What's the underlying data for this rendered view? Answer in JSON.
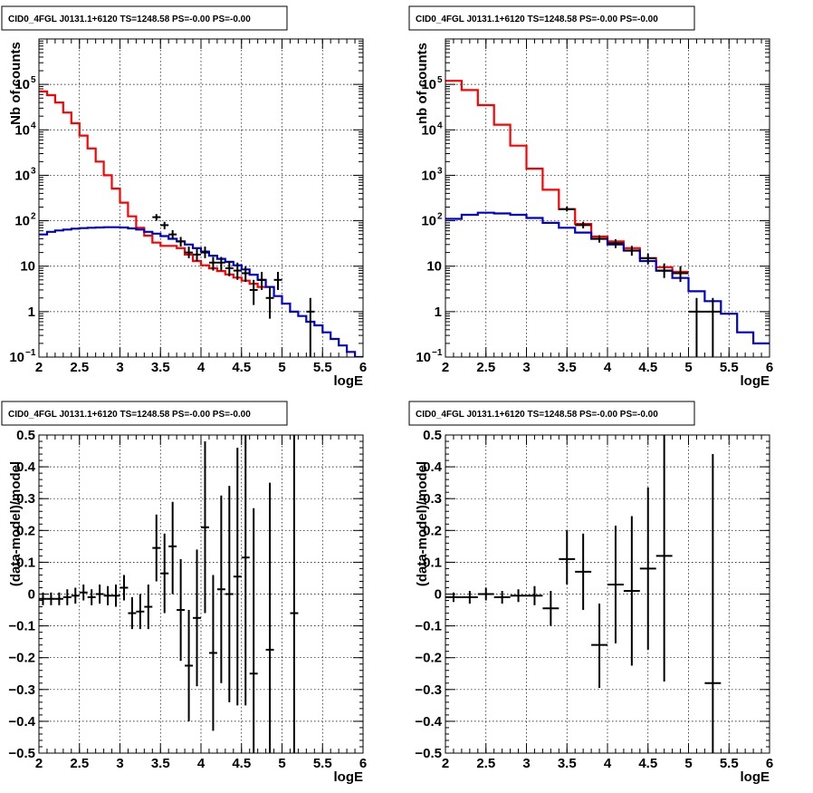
{
  "panel_title": "CID0_4FGL J0131.1+6120 TS=1248.58 PS=-0.00 PS=-0.00",
  "colors": {
    "model_total": "#ff0000",
    "model_background": "#0000cc",
    "data": "#000000",
    "grid": "#000000"
  },
  "chart_data": [
    {
      "id": "counts-left",
      "type": "line",
      "title": "CID0_4FGL J0131.1+6120 TS=1248.58 PS=-0.00 PS=-0.00",
      "xlabel": "logE",
      "ylabel": "Nb of counts",
      "xlim": [
        2,
        6
      ],
      "ylim": [
        0.1,
        1000000
      ],
      "yscale": "log",
      "grid": true,
      "x_ticks": [
        "2",
        "2.5",
        "3",
        "3.5",
        "4",
        "4.5",
        "5",
        "5.5",
        "6"
      ],
      "y_ticks": [
        {
          "value": 0.1,
          "label": "10",
          "exp": "−1"
        },
        {
          "value": 1,
          "label": "1",
          "exp": ""
        },
        {
          "value": 10,
          "label": "10",
          "exp": ""
        },
        {
          "value": 100,
          "label": "10",
          "exp": "2"
        },
        {
          "value": 1000,
          "label": "10",
          "exp": "3"
        },
        {
          "value": 10000,
          "label": "10",
          "exp": "4"
        },
        {
          "value": 100000,
          "label": "10",
          "exp": "5"
        }
      ],
      "bin_edges": [
        2.0,
        2.1,
        2.2,
        2.3,
        2.4,
        2.5,
        2.6,
        2.7,
        2.8,
        2.9,
        3.0,
        3.1,
        3.2,
        3.3,
        3.4,
        3.5,
        3.6,
        3.7,
        3.8,
        3.9,
        4.0,
        4.1,
        4.2,
        4.3,
        4.4,
        4.5,
        4.6,
        4.7,
        4.8,
        4.9,
        5.0,
        5.1,
        5.2,
        5.3,
        5.4,
        5.5,
        5.6,
        5.7,
        5.8,
        5.9,
        6.0
      ],
      "series": [
        {
          "kind": "model_total",
          "values": [
            70000,
            58000,
            40000,
            24000,
            14000,
            7500,
            3900,
            2000,
            1000,
            510,
            250,
            125,
            70,
            47,
            33,
            28,
            28,
            25,
            18,
            13,
            10.5,
            9.0,
            7.8,
            6.6,
            5.6,
            4.8,
            4.1,
            3.5
          ]
        },
        {
          "kind": "model_background",
          "values": [
            50,
            57,
            61,
            64,
            67,
            69,
            70,
            71,
            72,
            72,
            71,
            68,
            64,
            57,
            52,
            46,
            40,
            35,
            30,
            25,
            21,
            17,
            14.5,
            12.5,
            10.5,
            8.5,
            6.5,
            5.0,
            3.5,
            2.2,
            1.5,
            1.0,
            0.8,
            0.6,
            0.5,
            0.35,
            0.25,
            0.18,
            0.13,
            0.1
          ]
        }
      ],
      "data_points": [
        {
          "x": 3.45,
          "y": 120,
          "lo": 100,
          "hi": 140
        },
        {
          "x": 3.55,
          "y": 80,
          "lo": 65,
          "hi": 95
        },
        {
          "x": 3.65,
          "y": 50,
          "lo": 40,
          "hi": 62
        },
        {
          "x": 3.75,
          "y": 35,
          "lo": 27,
          "hi": 44
        },
        {
          "x": 3.85,
          "y": 20,
          "lo": 15,
          "hi": 27
        },
        {
          "x": 3.95,
          "y": 18,
          "lo": 13,
          "hi": 24
        },
        {
          "x": 4.05,
          "y": 20,
          "lo": 15,
          "hi": 27
        },
        {
          "x": 4.15,
          "y": 12,
          "lo": 8,
          "hi": 16
        },
        {
          "x": 4.25,
          "y": 12,
          "lo": 8,
          "hi": 16
        },
        {
          "x": 4.35,
          "y": 9,
          "lo": 6,
          "hi": 13
        },
        {
          "x": 4.45,
          "y": 8,
          "lo": 5,
          "hi": 12
        },
        {
          "x": 4.55,
          "y": 7,
          "lo": 4.5,
          "hi": 10
        },
        {
          "x": 4.65,
          "y": 3,
          "lo": 1.4,
          "hi": 5
        },
        {
          "x": 4.75,
          "y": 5,
          "lo": 3,
          "hi": 7.5
        },
        {
          "x": 4.85,
          "y": 2,
          "lo": 0.7,
          "hi": 3.5
        },
        {
          "x": 4.95,
          "y": 5,
          "lo": 3,
          "hi": 7.5
        },
        {
          "x": 5.35,
          "y": 1,
          "lo": 0.1,
          "hi": 2
        }
      ]
    },
    {
      "id": "counts-right",
      "type": "line",
      "title": "CID0_4FGL J0131.1+6120 TS=1248.58 PS=-0.00 PS=-0.00",
      "xlabel": "logE",
      "ylabel": "nb of counts",
      "xlim": [
        2,
        6
      ],
      "ylim": [
        0.1,
        1000000
      ],
      "yscale": "log",
      "grid": true,
      "x_ticks": [
        "2",
        "2.5",
        "3",
        "3.5",
        "4",
        "4.5",
        "5",
        "5.5",
        "6"
      ],
      "y_ticks": [
        {
          "value": 0.1,
          "label": "10",
          "exp": "−1"
        },
        {
          "value": 1,
          "label": "1",
          "exp": ""
        },
        {
          "value": 10,
          "label": "10",
          "exp": ""
        },
        {
          "value": 100,
          "label": "10",
          "exp": "2"
        },
        {
          "value": 1000,
          "label": "10",
          "exp": "3"
        },
        {
          "value": 10000,
          "label": "10",
          "exp": "4"
        },
        {
          "value": 100000,
          "label": "10",
          "exp": "5"
        }
      ],
      "bin_edges": [
        2.0,
        2.2,
        2.4,
        2.6,
        2.8,
        3.0,
        3.2,
        3.4,
        3.6,
        3.8,
        4.0,
        4.2,
        4.4,
        4.6,
        4.8,
        5.0,
        5.2,
        5.4,
        5.6,
        5.8,
        6.0
      ],
      "series": [
        {
          "kind": "model_total",
          "values": [
            120000,
            75000,
            35000,
            13000,
            4500,
            1400,
            480,
            180,
            85,
            45,
            35,
            25,
            15,
            9.5,
            7.5
          ]
        },
        {
          "kind": "model_background",
          "values": [
            110,
            135,
            150,
            145,
            135,
            115,
            90,
            70,
            55,
            40,
            30,
            22,
            13,
            8,
            5.5,
            2.8,
            1.7,
            0.9,
            0.35,
            0.2
          ]
        }
      ],
      "data_points": [
        {
          "x": 3.5,
          "y": 180,
          "lo": 160,
          "hi": 205
        },
        {
          "x": 3.7,
          "y": 80,
          "lo": 68,
          "hi": 95
        },
        {
          "x": 3.9,
          "y": 40,
          "lo": 33,
          "hi": 48
        },
        {
          "x": 4.1,
          "y": 32,
          "lo": 25,
          "hi": 39
        },
        {
          "x": 4.3,
          "y": 22,
          "lo": 17,
          "hi": 28
        },
        {
          "x": 4.5,
          "y": 15,
          "lo": 11,
          "hi": 19
        },
        {
          "x": 4.7,
          "y": 8,
          "lo": 5.5,
          "hi": 11.5
        },
        {
          "x": 4.9,
          "y": 7,
          "lo": 4.5,
          "hi": 10
        },
        {
          "x": 5.1,
          "y": 1,
          "lo": 0.1,
          "hi": 2
        },
        {
          "x": 5.3,
          "y": 1,
          "lo": 0.1,
          "hi": 2
        }
      ]
    },
    {
      "id": "residuals-left",
      "type": "scatter",
      "title": "CID0_4FGL J0131.1+6120 TS=1248.58 PS=-0.00 PS=-0.00",
      "xlabel": "logE",
      "ylabel": "(data-model)/model",
      "xlim": [
        2,
        6
      ],
      "ylim": [
        -0.5,
        0.5
      ],
      "yscale": "linear",
      "grid": true,
      "x_ticks": [
        "2",
        "2.5",
        "3",
        "3.5",
        "4",
        "4.5",
        "5",
        "5.5",
        "6"
      ],
      "y_ticks": [
        {
          "value": -0.5,
          "label": "−0.5"
        },
        {
          "value": -0.4,
          "label": "−0.4"
        },
        {
          "value": -0.3,
          "label": "−0.3"
        },
        {
          "value": -0.2,
          "label": "−0.2"
        },
        {
          "value": -0.1,
          "label": "−0.1"
        },
        {
          "value": 0,
          "label": "0"
        },
        {
          "value": 0.1,
          "label": "0.1"
        },
        {
          "value": 0.2,
          "label": "0.2"
        },
        {
          "value": 0.3,
          "label": "0.3"
        },
        {
          "value": 0.4,
          "label": "0.4"
        },
        {
          "value": 0.5,
          "label": "0.5"
        }
      ],
      "x_half_width": 0.05,
      "data_points": [
        {
          "x": 2.05,
          "y": -0.015,
          "lo": -0.035,
          "hi": 0.005
        },
        {
          "x": 2.15,
          "y": -0.015,
          "lo": -0.035,
          "hi": 0.005
        },
        {
          "x": 2.25,
          "y": -0.015,
          "lo": -0.035,
          "hi": 0.005
        },
        {
          "x": 2.35,
          "y": -0.01,
          "lo": -0.035,
          "hi": 0.015
        },
        {
          "x": 2.45,
          "y": -0.005,
          "lo": -0.03,
          "hi": 0.02
        },
        {
          "x": 2.55,
          "y": 0.005,
          "lo": -0.02,
          "hi": 0.03
        },
        {
          "x": 2.65,
          "y": -0.01,
          "lo": -0.035,
          "hi": 0.015
        },
        {
          "x": 2.75,
          "y": 0.0,
          "lo": -0.03,
          "hi": 0.03
        },
        {
          "x": 2.85,
          "y": -0.005,
          "lo": -0.035,
          "hi": 0.025
        },
        {
          "x": 2.95,
          "y": -0.005,
          "lo": -0.04,
          "hi": 0.03
        },
        {
          "x": 3.05,
          "y": 0.02,
          "lo": -0.02,
          "hi": 0.06
        },
        {
          "x": 3.15,
          "y": -0.06,
          "lo": -0.11,
          "hi": -0.01
        },
        {
          "x": 3.25,
          "y": -0.055,
          "lo": -0.11,
          "hi": 0.0
        },
        {
          "x": 3.35,
          "y": -0.04,
          "lo": -0.11,
          "hi": 0.03
        },
        {
          "x": 3.45,
          "y": 0.145,
          "lo": 0.04,
          "hi": 0.25
        },
        {
          "x": 3.55,
          "y": 0.065,
          "lo": -0.06,
          "hi": 0.19
        },
        {
          "x": 3.65,
          "y": 0.15,
          "lo": 0.0,
          "hi": 0.29
        },
        {
          "x": 3.75,
          "y": -0.05,
          "lo": -0.21,
          "hi": 0.11
        },
        {
          "x": 3.85,
          "y": -0.225,
          "lo": -0.4,
          "hi": -0.05
        },
        {
          "x": 3.95,
          "y": -0.075,
          "lo": -0.29,
          "hi": 0.14
        },
        {
          "x": 4.05,
          "y": 0.21,
          "lo": -0.06,
          "hi": 0.48
        },
        {
          "x": 4.15,
          "y": -0.185,
          "lo": -0.43,
          "hi": 0.06
        },
        {
          "x": 4.25,
          "y": 0.015,
          "lo": -0.28,
          "hi": 0.31
        },
        {
          "x": 4.35,
          "y": 0.0,
          "lo": -0.34,
          "hi": 0.34
        },
        {
          "x": 4.45,
          "y": 0.055,
          "lo": -0.35,
          "hi": 0.46
        },
        {
          "x": 4.55,
          "y": 0.115,
          "lo": -0.35,
          "hi": 0.5
        },
        {
          "x": 4.65,
          "y": -0.25,
          "lo": -0.5,
          "hi": 0.27
        },
        {
          "x": 4.85,
          "y": -0.175,
          "lo": -0.5,
          "hi": 0.35
        },
        {
          "x": 5.15,
          "y": -0.06,
          "lo": -0.5,
          "hi": 0.5
        }
      ]
    },
    {
      "id": "residuals-right",
      "type": "scatter",
      "title": "CID0_4FGL J0131.1+6120 TS=1248.58 PS=-0.00 PS=-0.00",
      "xlabel": "logE",
      "ylabel": "(data-model)/model",
      "xlim": [
        2,
        6
      ],
      "ylim": [
        -0.5,
        0.5
      ],
      "yscale": "linear",
      "grid": true,
      "x_ticks": [
        "2",
        "2.5",
        "3",
        "3.5",
        "4",
        "4.5",
        "5",
        "5.5",
        "6"
      ],
      "y_ticks": [
        {
          "value": -0.5,
          "label": "−0.5"
        },
        {
          "value": -0.4,
          "label": "−0.4"
        },
        {
          "value": -0.3,
          "label": "−0.3"
        },
        {
          "value": -0.2,
          "label": "−0.2"
        },
        {
          "value": -0.1,
          "label": "−0.1"
        },
        {
          "value": 0,
          "label": "0"
        },
        {
          "value": 0.1,
          "label": "0.1"
        },
        {
          "value": 0.2,
          "label": "0.2"
        },
        {
          "value": 0.3,
          "label": "0.3"
        },
        {
          "value": 0.4,
          "label": "0.4"
        },
        {
          "value": 0.5,
          "label": "0.5"
        }
      ],
      "x_half_width": 0.1,
      "data_points": [
        {
          "x": 2.1,
          "y": -0.01,
          "lo": -0.025,
          "hi": 0.005
        },
        {
          "x": 2.3,
          "y": -0.01,
          "lo": -0.03,
          "hi": 0.01
        },
        {
          "x": 2.5,
          "y": 0.0,
          "lo": -0.02,
          "hi": 0.02
        },
        {
          "x": 2.7,
          "y": -0.01,
          "lo": -0.03,
          "hi": 0.01
        },
        {
          "x": 2.9,
          "y": -0.005,
          "lo": -0.025,
          "hi": 0.015
        },
        {
          "x": 3.1,
          "y": -0.005,
          "lo": -0.035,
          "hi": 0.025
        },
        {
          "x": 3.3,
          "y": -0.045,
          "lo": -0.1,
          "hi": 0.01
        },
        {
          "x": 3.5,
          "y": 0.11,
          "lo": 0.03,
          "hi": 0.2
        },
        {
          "x": 3.7,
          "y": 0.07,
          "lo": -0.05,
          "hi": 0.19
        },
        {
          "x": 3.9,
          "y": -0.16,
          "lo": -0.295,
          "hi": -0.03
        },
        {
          "x": 4.1,
          "y": 0.03,
          "lo": -0.155,
          "hi": 0.215
        },
        {
          "x": 4.3,
          "y": 0.01,
          "lo": -0.225,
          "hi": 0.245
        },
        {
          "x": 4.5,
          "y": 0.08,
          "lo": -0.175,
          "hi": 0.335
        },
        {
          "x": 4.7,
          "y": 0.12,
          "lo": -0.275,
          "hi": 0.5
        },
        {
          "x": 5.3,
          "y": -0.28,
          "lo": -0.5,
          "hi": 0.44
        }
      ]
    }
  ]
}
